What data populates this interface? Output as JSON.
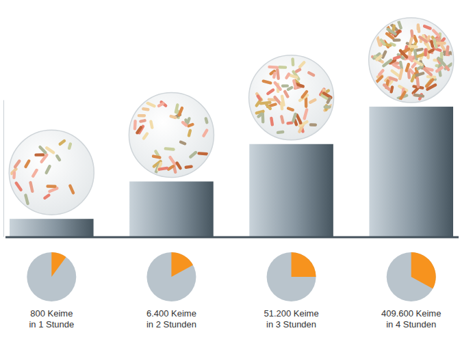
{
  "chart_data": {
    "type": "bar",
    "categories": [
      [
        "800 Keime",
        "in 1 Stunde"
      ],
      [
        "6.400 Keime",
        "in 2 Stunden"
      ],
      [
        "51.200 Keime",
        "in 3 Stunden"
      ],
      [
        "409.600 Keime",
        "in 4 Stunden"
      ]
    ],
    "values": [
      800,
      6400,
      51200,
      409600
    ],
    "log": "y",
    "ylim": [
      300,
      600000
    ],
    "tick_labels": false,
    "shares": [
      10,
      17,
      25,
      33
    ]
  }
}
